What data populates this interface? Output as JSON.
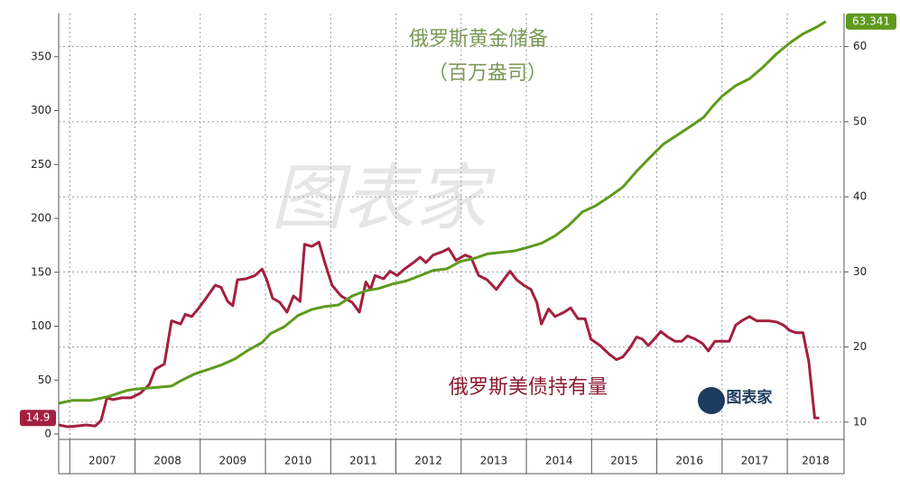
{
  "chart_data": {
    "type": "line",
    "annotations": [
      "俄罗斯黄金储备",
      "（百万盎司）",
      "俄罗斯美债持有量"
    ],
    "watermark": "图表家",
    "xlim": [
      2006.83,
      2018.87
    ],
    "xticks": [
      2007,
      2008,
      2009,
      2010,
      2011,
      2012,
      2013,
      2014,
      2015,
      2016,
      2017,
      2018
    ],
    "ylim": [
      -5,
      390
    ],
    "yticks": [
      0,
      50,
      100,
      150,
      200,
      250,
      300,
      350
    ],
    "y2lim": [
      7.7,
      64.4
    ],
    "y2ticks": [
      10,
      20,
      30,
      40,
      50,
      60
    ],
    "grid": true,
    "series": [
      {
        "name": "俄罗斯美债持有量",
        "color": "#a3203f",
        "axis": "y",
        "x": [
          2006.83,
          2006.97,
          2007.11,
          2007.25,
          2007.39,
          2007.48,
          2007.57,
          2007.66,
          2007.8,
          2007.94,
          2008.08,
          2008.22,
          2008.31,
          2008.45,
          2008.56,
          2008.7,
          2008.77,
          2008.87,
          2008.98,
          2009.09,
          2009.23,
          2009.32,
          2009.42,
          2009.5,
          2009.57,
          2009.7,
          2009.84,
          2009.95,
          2010.02,
          2010.11,
          2010.22,
          2010.33,
          2010.43,
          2010.53,
          2010.6,
          2010.71,
          2010.82,
          2010.91,
          2011.02,
          2011.16,
          2011.33,
          2011.44,
          2011.54,
          2011.61,
          2011.68,
          2011.81,
          2011.91,
          2012.02,
          2012.13,
          2012.27,
          2012.37,
          2012.46,
          2012.57,
          2012.71,
          2012.81,
          2012.92,
          2013.06,
          2013.15,
          2013.27,
          2013.4,
          2013.54,
          2013.65,
          2013.75,
          2013.85,
          2013.96,
          2014.07,
          2014.16,
          2014.23,
          2014.34,
          2014.44,
          2014.58,
          2014.68,
          2014.79,
          2014.9,
          2014.99,
          2015.13,
          2015.27,
          2015.38,
          2015.48,
          2015.59,
          2015.69,
          2015.78,
          2015.87,
          2015.96,
          2016.06,
          2016.17,
          2016.28,
          2016.38,
          2016.47,
          2016.59,
          2016.7,
          2016.79,
          2016.89,
          2017.0,
          2017.11,
          2017.21,
          2017.3,
          2017.42,
          2017.53,
          2017.62,
          2017.72,
          2017.83,
          2017.94,
          2018.04,
          2018.13,
          2018.24,
          2018.33,
          2018.42,
          2018.49
        ],
        "values": [
          8.4,
          6.7,
          7.5,
          8.4,
          7.5,
          12.6,
          33.6,
          31.9,
          33.6,
          33.6,
          37.8,
          46,
          60,
          65,
          105,
          102,
          111,
          109,
          117,
          126,
          138,
          136,
          123,
          119,
          143,
          144,
          147,
          153,
          143,
          126,
          122,
          113,
          128,
          123,
          176,
          174,
          178,
          159,
          138,
          128,
          122,
          113,
          141,
          134,
          147,
          144,
          151,
          147,
          153,
          159,
          164,
          159,
          166,
          169,
          172,
          161,
          166,
          164,
          147,
          143,
          134,
          143,
          151,
          143,
          138,
          134,
          122,
          102,
          116,
          109,
          113,
          117,
          107,
          107,
          88,
          82,
          74,
          69,
          71.5,
          80,
          90,
          88,
          82,
          88,
          95,
          90,
          86,
          86,
          91,
          88,
          84,
          77,
          86,
          86,
          86,
          101,
          105,
          109,
          105,
          105,
          105,
          104,
          101,
          96,
          94,
          94,
          67,
          15,
          14.9
        ]
      },
      {
        "name": "俄罗斯黄金储备",
        "color": "#5e9a1e",
        "axis": "y2",
        "x": [
          2006.83,
          2007.04,
          2007.32,
          2007.59,
          2007.87,
          2008.01,
          2008.29,
          2008.56,
          2008.7,
          2008.91,
          2009.12,
          2009.32,
          2009.53,
          2009.74,
          2009.95,
          2010.08,
          2010.29,
          2010.5,
          2010.71,
          2010.91,
          2011.12,
          2011.33,
          2011.54,
          2011.74,
          2011.95,
          2012.16,
          2012.37,
          2012.57,
          2012.78,
          2012.99,
          2013.2,
          2013.4,
          2013.61,
          2013.82,
          2014.03,
          2014.23,
          2014.44,
          2014.65,
          2014.86,
          2015.06,
          2015.27,
          2015.48,
          2015.69,
          2015.89,
          2016.1,
          2016.31,
          2016.52,
          2016.72,
          2016.86,
          2017.0,
          2017.21,
          2017.42,
          2017.62,
          2017.83,
          2018.04,
          2018.24,
          2018.45,
          2018.59
        ],
        "values": [
          12.5,
          12.9,
          12.9,
          13.4,
          14.2,
          14.4,
          14.6,
          14.8,
          15.5,
          16.4,
          17.0,
          17.6,
          18.4,
          19.6,
          20.6,
          21.8,
          22.7,
          24.2,
          25.0,
          25.4,
          25.6,
          26.8,
          27.5,
          27.8,
          28.4,
          28.8,
          29.5,
          30.2,
          30.4,
          31.4,
          31.8,
          32.4,
          32.6,
          32.8,
          33.3,
          33.8,
          34.8,
          36.2,
          38.0,
          38.8,
          40.0,
          41.3,
          43.4,
          45.2,
          47.0,
          48.2,
          49.4,
          50.6,
          52.1,
          53.4,
          54.8,
          55.7,
          57.2,
          59.0,
          60.5,
          61.7,
          62.6,
          63.341
        ]
      }
    ]
  }
}
